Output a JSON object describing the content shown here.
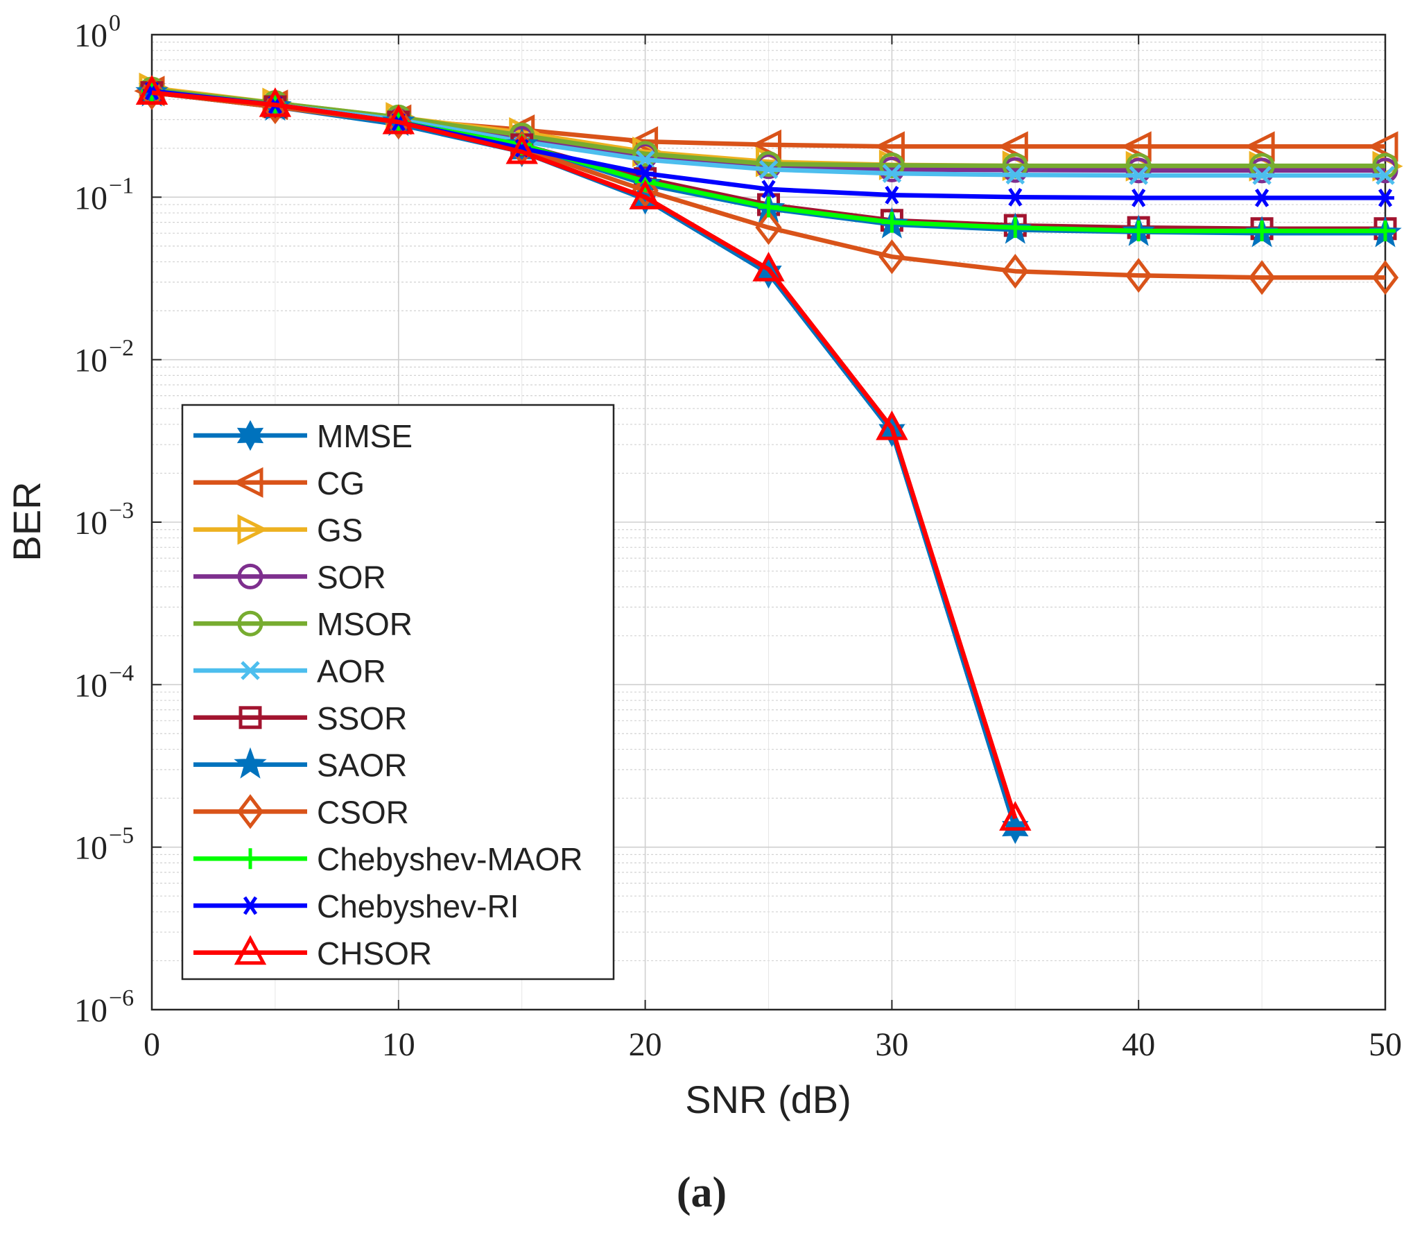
{
  "chart_data": {
    "type": "line",
    "xlabel": "SNR (dB)",
    "ylabel": "BER",
    "caption": "(a)",
    "xlim": [
      0,
      50
    ],
    "ylim": [
      1e-06,
      1
    ],
    "y_scale": "log",
    "grid": true,
    "minor_grid": true,
    "legend_position": "bottom-left",
    "x_ticks": [
      0,
      10,
      20,
      30,
      40,
      50
    ],
    "x_tick_labels": [
      "0",
      "10",
      "20",
      "30",
      "40",
      "50"
    ],
    "y_ticks": [
      1.0,
      0.1,
      0.01,
      0.001,
      0.0001,
      1e-05,
      1e-06
    ],
    "y_tick_labels": [
      {
        "base": "10",
        "exp": "0"
      },
      {
        "base": "10",
        "exp": "−1"
      },
      {
        "base": "10",
        "exp": "−2"
      },
      {
        "base": "10",
        "exp": "−3"
      },
      {
        "base": "10",
        "exp": "−4"
      },
      {
        "base": "10",
        "exp": "−5"
      },
      {
        "base": "10",
        "exp": "−6"
      }
    ],
    "x": [
      0,
      5,
      10,
      15,
      20,
      25,
      30,
      35,
      40,
      45,
      50
    ],
    "series": [
      {
        "name": "MMSE",
        "color": "#0072BD",
        "marker": "hexagram",
        "values": [
          0.45,
          0.36,
          0.28,
          0.19,
          0.097,
          0.034,
          0.0036,
          1.3e-05,
          null,
          null,
          null
        ]
      },
      {
        "name": "CG",
        "color": "#D95319",
        "marker": "triangle-left",
        "values": [
          0.45,
          0.37,
          0.3,
          0.26,
          0.22,
          0.21,
          0.205,
          0.205,
          0.205,
          0.205,
          0.205
        ]
      },
      {
        "name": "GS",
        "color": "#EDB120",
        "marker": "triangle-right",
        "values": [
          0.47,
          0.38,
          0.31,
          0.25,
          0.19,
          0.165,
          0.158,
          0.156,
          0.155,
          0.155,
          0.155
        ]
      },
      {
        "name": "SOR",
        "color": "#7E2F8E",
        "marker": "circle",
        "values": [
          0.45,
          0.37,
          0.3,
          0.23,
          0.18,
          0.155,
          0.148,
          0.147,
          0.146,
          0.146,
          0.146
        ]
      },
      {
        "name": "MSOR",
        "color": "#77AC30",
        "marker": "circle",
        "values": [
          0.46,
          0.38,
          0.31,
          0.24,
          0.185,
          0.16,
          0.157,
          0.156,
          0.156,
          0.156,
          0.156
        ]
      },
      {
        "name": "AOR",
        "color": "#4DBEEE",
        "marker": "x",
        "values": [
          0.45,
          0.37,
          0.3,
          0.22,
          0.17,
          0.148,
          0.14,
          0.137,
          0.136,
          0.136,
          0.136
        ]
      },
      {
        "name": "SSOR",
        "color": "#A2142F",
        "marker": "square",
        "values": [
          0.44,
          0.36,
          0.29,
          0.21,
          0.13,
          0.09,
          0.072,
          0.067,
          0.065,
          0.064,
          0.064
        ]
      },
      {
        "name": "SAOR",
        "color": "#0072BD",
        "marker": "pentagram",
        "values": [
          0.44,
          0.36,
          0.29,
          0.21,
          0.12,
          0.085,
          0.068,
          0.063,
          0.061,
          0.06,
          0.06
        ]
      },
      {
        "name": "CSOR",
        "color": "#D95319",
        "marker": "diamond",
        "values": [
          0.44,
          0.36,
          0.29,
          0.2,
          0.11,
          0.065,
          0.043,
          0.035,
          0.033,
          0.032,
          0.032
        ]
      },
      {
        "name": "Chebyshev-MAOR",
        "color": "#00FF00",
        "marker": "plus",
        "values": [
          0.45,
          0.37,
          0.29,
          0.21,
          0.125,
          0.087,
          0.07,
          0.065,
          0.062,
          0.062,
          0.062
        ]
      },
      {
        "name": "Chebyshev-RI",
        "color": "#0000FF",
        "marker": "asterisk",
        "values": [
          0.45,
          0.37,
          0.29,
          0.2,
          0.14,
          0.112,
          0.103,
          0.1,
          0.099,
          0.099,
          0.099
        ]
      },
      {
        "name": "CHSOR",
        "color": "#FF0000",
        "marker": "triangle-up",
        "values": [
          0.44,
          0.37,
          0.29,
          0.19,
          0.1,
          0.036,
          0.0038,
          1.5e-05,
          null,
          null,
          null
        ]
      }
    ]
  }
}
